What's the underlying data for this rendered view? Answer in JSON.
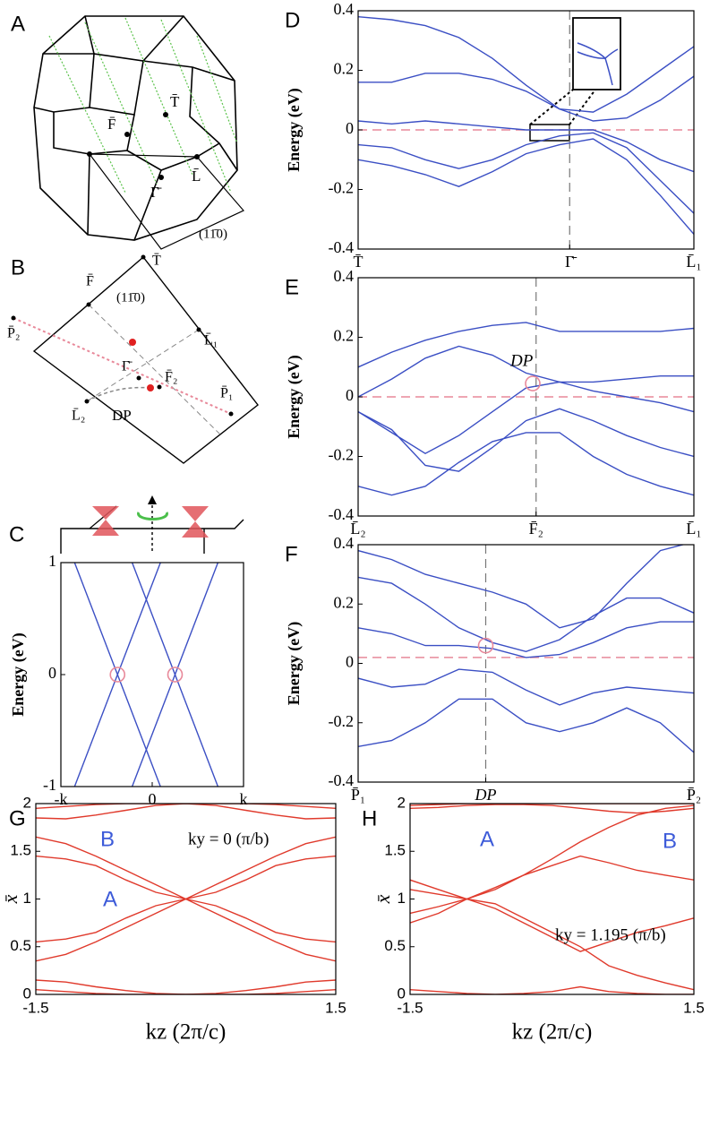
{
  "diagrams": {
    "A": {
      "panel_label": "A",
      "labels": [
        "T̄",
        "F̄",
        "Γ̄",
        "L̄",
        "(11̄0)"
      ]
    },
    "B": {
      "panel_label": "B",
      "labels": [
        "T̄",
        "F̄",
        "(11̄0)",
        "L̄₁",
        "Γ̄",
        "F̄₂",
        "P̄₂",
        "P̄₁",
        "L̄₂",
        "DP"
      ]
    }
  },
  "chart_data": [
    {
      "type": "line",
      "panel_label": "C",
      "ylabel": "Energy (eV)",
      "xlim": [
        -1,
        1
      ],
      "ylim": [
        -1,
        1
      ],
      "xticks": [
        {
          "value": -1,
          "label": "-k"
        },
        0,
        {
          "value": 1,
          "label": "k"
        }
      ],
      "yticks": [
        -1,
        0,
        1
      ],
      "series": [
        {
          "color": "#3b4fc4",
          "x": [
            -0.85,
            0.09
          ],
          "values": [
            1,
            -1
          ]
        },
        {
          "color": "#3b4fc4",
          "x": [
            0.09,
            -0.85
          ],
          "values": [
            1,
            -1
          ]
        },
        {
          "color": "#3b4fc4",
          "x": [
            -0.22,
            0.72
          ],
          "values": [
            1,
            -1
          ]
        },
        {
          "color": "#3b4fc4",
          "x": [
            0.72,
            -0.22
          ],
          "values": [
            1,
            -1
          ]
        }
      ],
      "markers": [
        {
          "x": -0.38,
          "y": 0
        },
        {
          "x": 0.25,
          "y": 0
        }
      ],
      "marker_color": "#e8899a"
    },
    {
      "type": "line",
      "panel_label": "D",
      "ylabel": "Energy (eV)",
      "xlim": [
        0,
        1
      ],
      "ylim": [
        -0.4,
        0.4
      ],
      "yticks": [
        -0.4,
        -0.2,
        0,
        0.2,
        0.4
      ],
      "xticks": [
        {
          "value": 0,
          "label": "T̄"
        },
        {
          "value": 0.63,
          "label": "Γ̄"
        },
        {
          "value": 1,
          "label": "L̄₁"
        }
      ],
      "vline": 0.63,
      "hline": 0,
      "hline_color": "#e8899a",
      "x": [
        0,
        0.1,
        0.2,
        0.3,
        0.4,
        0.5,
        0.6,
        0.7,
        0.8,
        0.9,
        1
      ],
      "series": [
        {
          "color": "#3b4fc4",
          "values": [
            0.38,
            0.37,
            0.35,
            0.31,
            0.24,
            0.15,
            0.07,
            0.06,
            0.12,
            0.2,
            0.28
          ]
        },
        {
          "color": "#3b4fc4",
          "values": [
            0.16,
            0.16,
            0.19,
            0.19,
            0.17,
            0.13,
            0.07,
            0.03,
            0.04,
            0.1,
            0.18
          ]
        },
        {
          "color": "#3b4fc4",
          "values": [
            0.03,
            0.02,
            0.03,
            0.02,
            0.01,
            0,
            0,
            0,
            -0.04,
            -0.1,
            -0.14
          ]
        },
        {
          "color": "#3b4fc4",
          "values": [
            -0.05,
            -0.06,
            -0.1,
            -0.13,
            -0.1,
            -0.05,
            -0.02,
            -0.01,
            -0.06,
            -0.17,
            -0.28
          ]
        },
        {
          "color": "#3b4fc4",
          "values": [
            -0.1,
            -0.12,
            -0.15,
            -0.19,
            -0.14,
            -0.08,
            -0.05,
            -0.03,
            -0.1,
            -0.22,
            -0.35
          ]
        }
      ]
    },
    {
      "type": "line",
      "panel_label": "E",
      "ylabel": "Energy (eV)",
      "xlim": [
        0,
        1
      ],
      "ylim": [
        -0.4,
        0.4
      ],
      "yticks": [
        -0.4,
        -0.2,
        0,
        0.2,
        0.4
      ],
      "xticks": [
        {
          "value": 0,
          "label": "L̄₂"
        },
        {
          "value": 0.53,
          "label": "F̄₂"
        },
        {
          "value": 1,
          "label": "L̄₁"
        }
      ],
      "vline": 0.53,
      "hline": 0,
      "hline_color": "#e8899a",
      "x": [
        0,
        0.1,
        0.2,
        0.3,
        0.4,
        0.5,
        0.6,
        0.7,
        0.8,
        0.9,
        1
      ],
      "series": [
        {
          "color": "#3b4fc4",
          "values": [
            0.1,
            0.15,
            0.19,
            0.22,
            0.24,
            0.25,
            0.22,
            0.22,
            0.22,
            0.22,
            0.23
          ]
        },
        {
          "color": "#3b4fc4",
          "values": [
            0,
            0.06,
            0.13,
            0.17,
            0.14,
            0.08,
            0.05,
            0.05,
            0.06,
            0.07,
            0.07
          ]
        },
        {
          "color": "#3b4fc4",
          "values": [
            -0.05,
            -0.12,
            -0.19,
            -0.13,
            -0.05,
            0.03,
            0.05,
            0.02,
            0,
            -0.02,
            -0.05
          ]
        },
        {
          "color": "#3b4fc4",
          "values": [
            -0.05,
            -0.11,
            -0.23,
            -0.25,
            -0.17,
            -0.08,
            -0.04,
            -0.08,
            -0.13,
            -0.17,
            -0.2
          ]
        },
        {
          "color": "#3b4fc4",
          "values": [
            -0.3,
            -0.33,
            -0.3,
            -0.22,
            -0.15,
            -0.12,
            -0.12,
            -0.2,
            -0.26,
            -0.3,
            -0.33
          ]
        }
      ],
      "markers": [
        {
          "x": 0.52,
          "y": 0.045
        }
      ],
      "marker_color": "#e8899a",
      "annotations": [
        {
          "text": "DP",
          "color": "#000000"
        }
      ]
    },
    {
      "type": "line",
      "panel_label": "F",
      "ylabel": "Energy (eV)",
      "xlim": [
        0,
        1
      ],
      "ylim": [
        -0.4,
        0.4
      ],
      "yticks": [
        -0.4,
        -0.2,
        0,
        0.2,
        0.4
      ],
      "xticks": [
        {
          "value": 0,
          "label": "P̄₁"
        },
        {
          "value": 0.38,
          "label": "DP"
        },
        {
          "value": 1,
          "label": "P̄₂"
        }
      ],
      "vline": 0.38,
      "hline": 0.02,
      "hline_color": "#e8899a",
      "x": [
        0,
        0.1,
        0.2,
        0.3,
        0.4,
        0.5,
        0.6,
        0.7,
        0.8,
        0.9,
        1
      ],
      "series": [
        {
          "color": "#3b4fc4",
          "values": [
            0.38,
            0.35,
            0.3,
            0.27,
            0.24,
            0.2,
            0.12,
            0.15,
            0.27,
            0.38,
            0.41
          ]
        },
        {
          "color": "#3b4fc4",
          "values": [
            0.29,
            0.27,
            0.2,
            0.12,
            0.07,
            0.04,
            0.08,
            0.16,
            0.22,
            0.22,
            0.17
          ]
        },
        {
          "color": "#3b4fc4",
          "values": [
            0.12,
            0.1,
            0.06,
            0.06,
            0.05,
            0.02,
            0.03,
            0.07,
            0.12,
            0.14,
            0.14
          ]
        },
        {
          "color": "#3b4fc4",
          "values": [
            -0.05,
            -0.08,
            -0.07,
            -0.02,
            -0.03,
            -0.09,
            -0.14,
            -0.1,
            -0.08,
            -0.09,
            -0.1
          ]
        },
        {
          "color": "#3b4fc4",
          "values": [
            -0.28,
            -0.26,
            -0.2,
            -0.12,
            -0.12,
            -0.2,
            -0.23,
            -0.2,
            -0.15,
            -0.2,
            -0.3
          ]
        }
      ],
      "markers": [
        {
          "x": 0.38,
          "y": 0.06
        }
      ],
      "marker_color": "#e8899a"
    },
    {
      "type": "line",
      "panel_label": "G",
      "ylabel": "x̄",
      "xlabel": "kz (2π/c)",
      "xlim": [
        -1.5,
        1.5
      ],
      "ylim": [
        0,
        2
      ],
      "yticks": [
        0,
        0.5,
        1,
        1.5,
        2
      ],
      "xticks": [
        -1.5,
        1.5
      ],
      "x": [
        -1.5,
        -1.2,
        -0.9,
        -0.6,
        -0.3,
        0,
        0.3,
        0.6,
        0.9,
        1.2,
        1.5
      ],
      "series": [
        {
          "color": "#e03a2c",
          "values": [
            1.95,
            1.97,
            1.99,
            2,
            2,
            2,
            2,
            2,
            1.99,
            1.97,
            1.95
          ]
        },
        {
          "color": "#e03a2c",
          "values": [
            1.85,
            1.84,
            1.88,
            1.93,
            1.98,
            2,
            1.98,
            1.93,
            1.88,
            1.84,
            1.85
          ]
        },
        {
          "color": "#e03a2c",
          "values": [
            1.65,
            1.58,
            1.45,
            1.3,
            1.15,
            1,
            0.85,
            0.7,
            0.55,
            0.42,
            0.35
          ]
        },
        {
          "color": "#e03a2c",
          "values": [
            0.35,
            0.42,
            0.55,
            0.7,
            0.85,
            1,
            1.15,
            1.3,
            1.45,
            1.58,
            1.65
          ]
        },
        {
          "color": "#e03a2c",
          "values": [
            1.45,
            1.42,
            1.35,
            1.2,
            1.07,
            1,
            0.93,
            0.8,
            0.65,
            0.58,
            0.55
          ]
        },
        {
          "color": "#e03a2c",
          "values": [
            0.55,
            0.58,
            0.65,
            0.8,
            0.93,
            1,
            1.07,
            1.2,
            1.35,
            1.42,
            1.45
          ]
        },
        {
          "color": "#e03a2c",
          "values": [
            0.15,
            0.13,
            0.08,
            0.04,
            0.01,
            0,
            0.01,
            0.04,
            0.08,
            0.13,
            0.15
          ]
        },
        {
          "color": "#e03a2c",
          "values": [
            0.05,
            0.03,
            0.01,
            0,
            0,
            0,
            0,
            0,
            0.01,
            0.03,
            0.05
          ]
        }
      ],
      "annotations": [
        {
          "text": "A",
          "color": "#3d5bd9"
        },
        {
          "text": "B",
          "color": "#3d5bd9"
        },
        {
          "text": "ky = 0 (π/b)",
          "color": "#000000"
        }
      ]
    },
    {
      "type": "line",
      "panel_label": "H",
      "ylabel": "x̄",
      "xlabel": "kz (2π/c)",
      "xlim": [
        -1.5,
        1.5
      ],
      "ylim": [
        0,
        2
      ],
      "yticks": [
        0,
        0.5,
        1,
        1.5,
        2
      ],
      "xticks": [
        -1.5,
        1.5
      ],
      "x": [
        -1.5,
        -1.2,
        -0.9,
        -0.6,
        -0.3,
        0,
        0.3,
        0.6,
        0.9,
        1.2,
        1.5
      ],
      "series": [
        {
          "color": "#e03a2c",
          "values": [
            1.98,
            1.99,
            2,
            2,
            2,
            2,
            2,
            2,
            2,
            2,
            2
          ]
        },
        {
          "color": "#e03a2c",
          "values": [
            1.95,
            1.96,
            1.98,
            1.99,
            1.99,
            1.98,
            1.95,
            1.92,
            1.9,
            1.92,
            1.95
          ]
        },
        {
          "color": "#e03a2c",
          "values": [
            1.2,
            1.1,
            1,
            1.1,
            1.25,
            1.42,
            1.6,
            1.75,
            1.88,
            1.95,
            1.98
          ]
        },
        {
          "color": "#e03a2c",
          "values": [
            0.75,
            0.85,
            1,
            1.12,
            1.25,
            1.35,
            1.45,
            1.38,
            1.3,
            1.25,
            1.2
          ]
        },
        {
          "color": "#e03a2c",
          "values": [
            0.85,
            0.92,
            1,
            0.95,
            0.8,
            0.65,
            0.5,
            0.3,
            0.2,
            0.12,
            0.05
          ]
        },
        {
          "color": "#e03a2c",
          "values": [
            1.1,
            1.05,
            1,
            0.9,
            0.75,
            0.6,
            0.45,
            0.55,
            0.65,
            0.72,
            0.8
          ]
        },
        {
          "color": "#e03a2c",
          "values": [
            0.05,
            0.03,
            0.01,
            0,
            0.01,
            0.03,
            0.08,
            0.03,
            0.01,
            0,
            0
          ]
        }
      ],
      "annotations": [
        {
          "text": "A",
          "color": "#3d5bd9"
        },
        {
          "text": "B",
          "color": "#3d5bd9"
        },
        {
          "text": "ky = 1.195 (π/b)",
          "color": "#000000"
        }
      ]
    }
  ]
}
